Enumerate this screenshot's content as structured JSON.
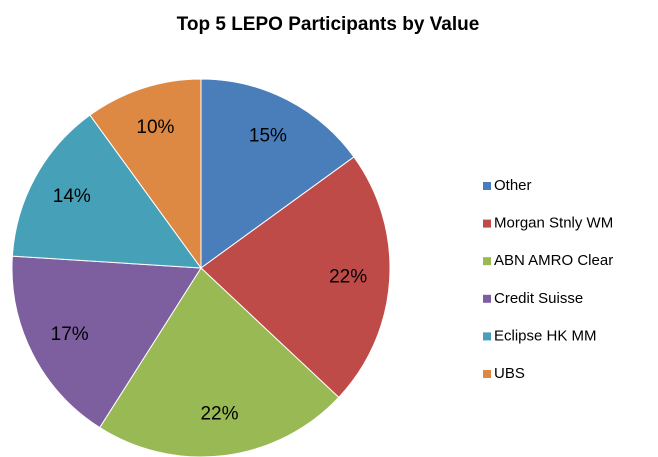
{
  "chart_data": {
    "type": "pie",
    "title": "Top 5 LEPO Participants by Value",
    "categories": [
      "Other",
      "Morgan Stnly WM",
      "ABN AMRO Clear",
      "Credit Suisse",
      "Eclipse HK MM",
      "UBS"
    ],
    "values": [
      15,
      22,
      22,
      17,
      14,
      10
    ],
    "value_labels": [
      "15%",
      "22%",
      "22%",
      "17%",
      "14%",
      "10%"
    ],
    "colors": [
      "#4a7ebb",
      "#be4b48",
      "#98b954",
      "#7d5fa0",
      "#46a0b8",
      "#dd8843"
    ],
    "legend": "right"
  }
}
